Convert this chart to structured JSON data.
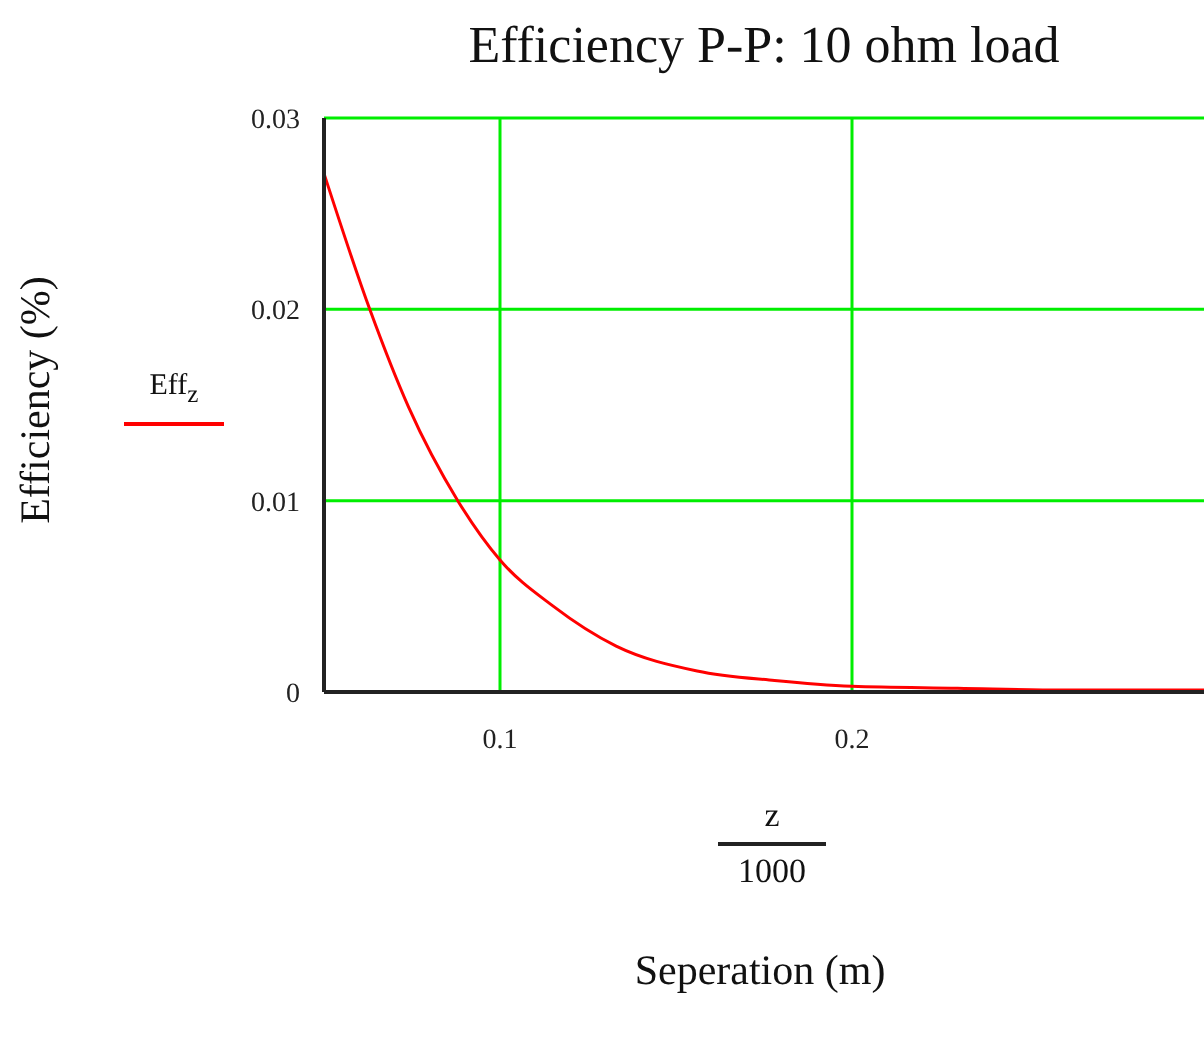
{
  "chart_data": {
    "type": "line",
    "title": "Efficiency P-P: 10 ohm load",
    "xlabel": "Seperation (m)",
    "ylabel": "Efficiency (%)",
    "annotations": [
      "z",
      "1000"
    ],
    "x": [
      0.05,
      0.063,
      0.074,
      0.088,
      0.1,
      0.115,
      0.133,
      0.156,
      0.178,
      0.2,
      0.23,
      0.26,
      0.3
    ],
    "series": [
      {
        "name": "Eff$_{z}$",
        "color": "#ff0000",
        "values": [
          0.0271,
          0.02,
          0.0149,
          0.01,
          0.0069,
          0.0045,
          0.0024,
          0.0011,
          0.0006,
          0.0003,
          0.0002,
          0.0001,
          0.0001
        ]
      }
    ],
    "xlim": [
      0.05,
      0.3
    ],
    "xticks": [
      0.1,
      0.2
    ],
    "ylim": [
      0,
      0.03
    ],
    "yticks": [
      0,
      0.01,
      0.02,
      0.03
    ],
    "grid": true,
    "legend": "left",
    "marker": "none",
    "line_style": "solid"
  }
}
